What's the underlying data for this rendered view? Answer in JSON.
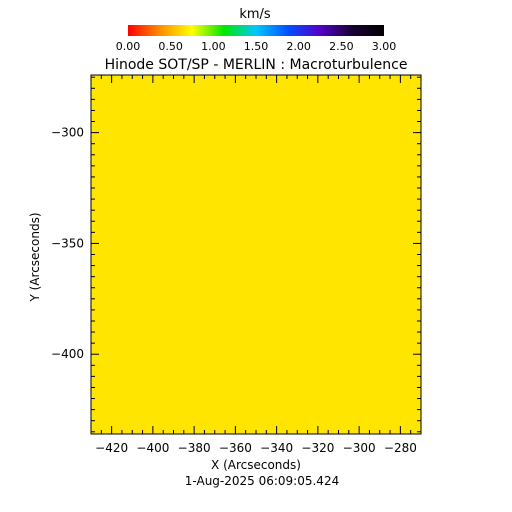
{
  "chart_data": {
    "type": "heatmap",
    "title": "Hinode SOT/SP - MERLIN : Macroturbulence",
    "xlabel": "X (Arcseconds)",
    "ylabel": "Y (Arcseconds)",
    "footer": "1-Aug-2025 06:09:05.424",
    "xlim": [
      -430,
      -270
    ],
    "ylim": [
      -436,
      -274
    ],
    "x_ticks": [
      -420,
      -400,
      -380,
      -360,
      -340,
      -320,
      -300,
      -280
    ],
    "x_tick_labels": [
      "−420",
      "−400",
      "−380",
      "−360",
      "−340",
      "−320",
      "−300",
      "−280"
    ],
    "y_ticks": [
      -300,
      -350,
      -400
    ],
    "y_tick_labels": [
      "−300",
      "−350",
      "−400"
    ],
    "grid": false,
    "field_value": 0.95,
    "field_color": "#ffe500",
    "colorbar": {
      "title": "km/s",
      "range": [
        0,
        3
      ],
      "ticks": [
        0,
        0.5,
        1,
        1.5,
        2,
        2.5,
        3
      ],
      "tick_labels": [
        "0.00",
        "0.50",
        "1.00",
        "1.50",
        "2.00",
        "2.50",
        "3.00"
      ],
      "colormap": [
        "#ff0000",
        "#ff8c00",
        "#ffff00",
        "#00e600",
        "#00c8ff",
        "#0050ff",
        "#5500c8",
        "#1a0033",
        "#000000"
      ]
    }
  }
}
